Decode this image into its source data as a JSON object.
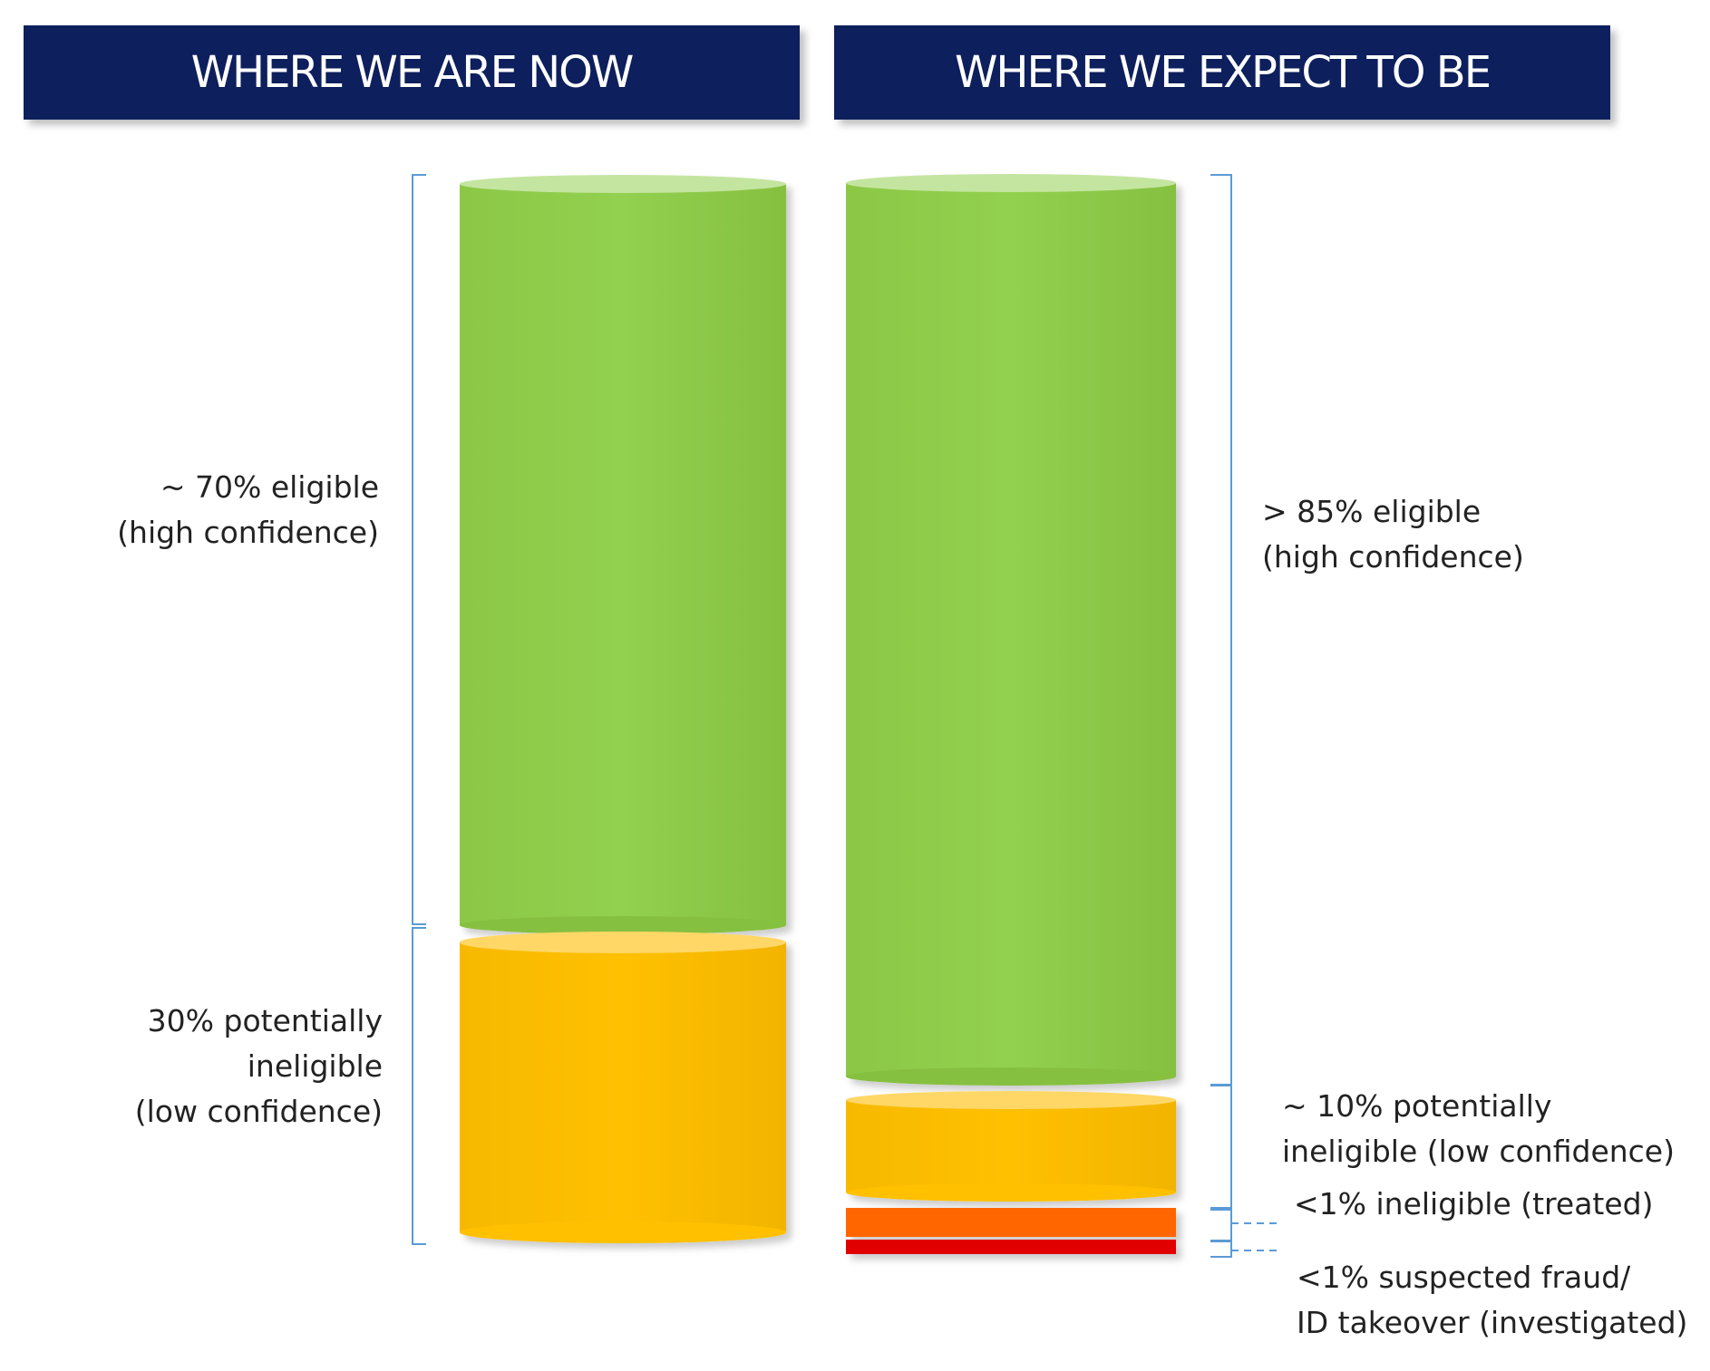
{
  "headers": {
    "now": "WHERE WE ARE NOW",
    "expect": "WHERE WE EXPECT TO BE"
  },
  "colors": {
    "header_bg": "#0d1f5c",
    "eligible": "#92d050",
    "potentially_ineligible": "#ffc000",
    "ineligible_treated": "#ff6600",
    "suspected_fraud": "#e00000",
    "bracket": "#5b9bd5"
  },
  "now": {
    "segments": [
      {
        "name": "eligible",
        "share_percent": 70,
        "label": "~ 70% eligible\n(high confidence)"
      },
      {
        "name": "potentially_ineligible",
        "share_percent": 30,
        "label": "30% potentially\nineligible\n(low confidence)"
      }
    ]
  },
  "expect": {
    "segments": [
      {
        "name": "eligible",
        "share_percent": 85,
        "label": "> 85% eligible\n(high confidence)"
      },
      {
        "name": "potentially_ineligible",
        "share_percent": 10,
        "label": "~ 10% potentially\nineligible (low confidence)"
      },
      {
        "name": "ineligible_treated",
        "share_percent": 1,
        "label": "<1% ineligible (treated)"
      },
      {
        "name": "suspected_fraud",
        "share_percent": 1,
        "label": "<1% suspected fraud/\nID takeover (investigated)"
      }
    ]
  }
}
